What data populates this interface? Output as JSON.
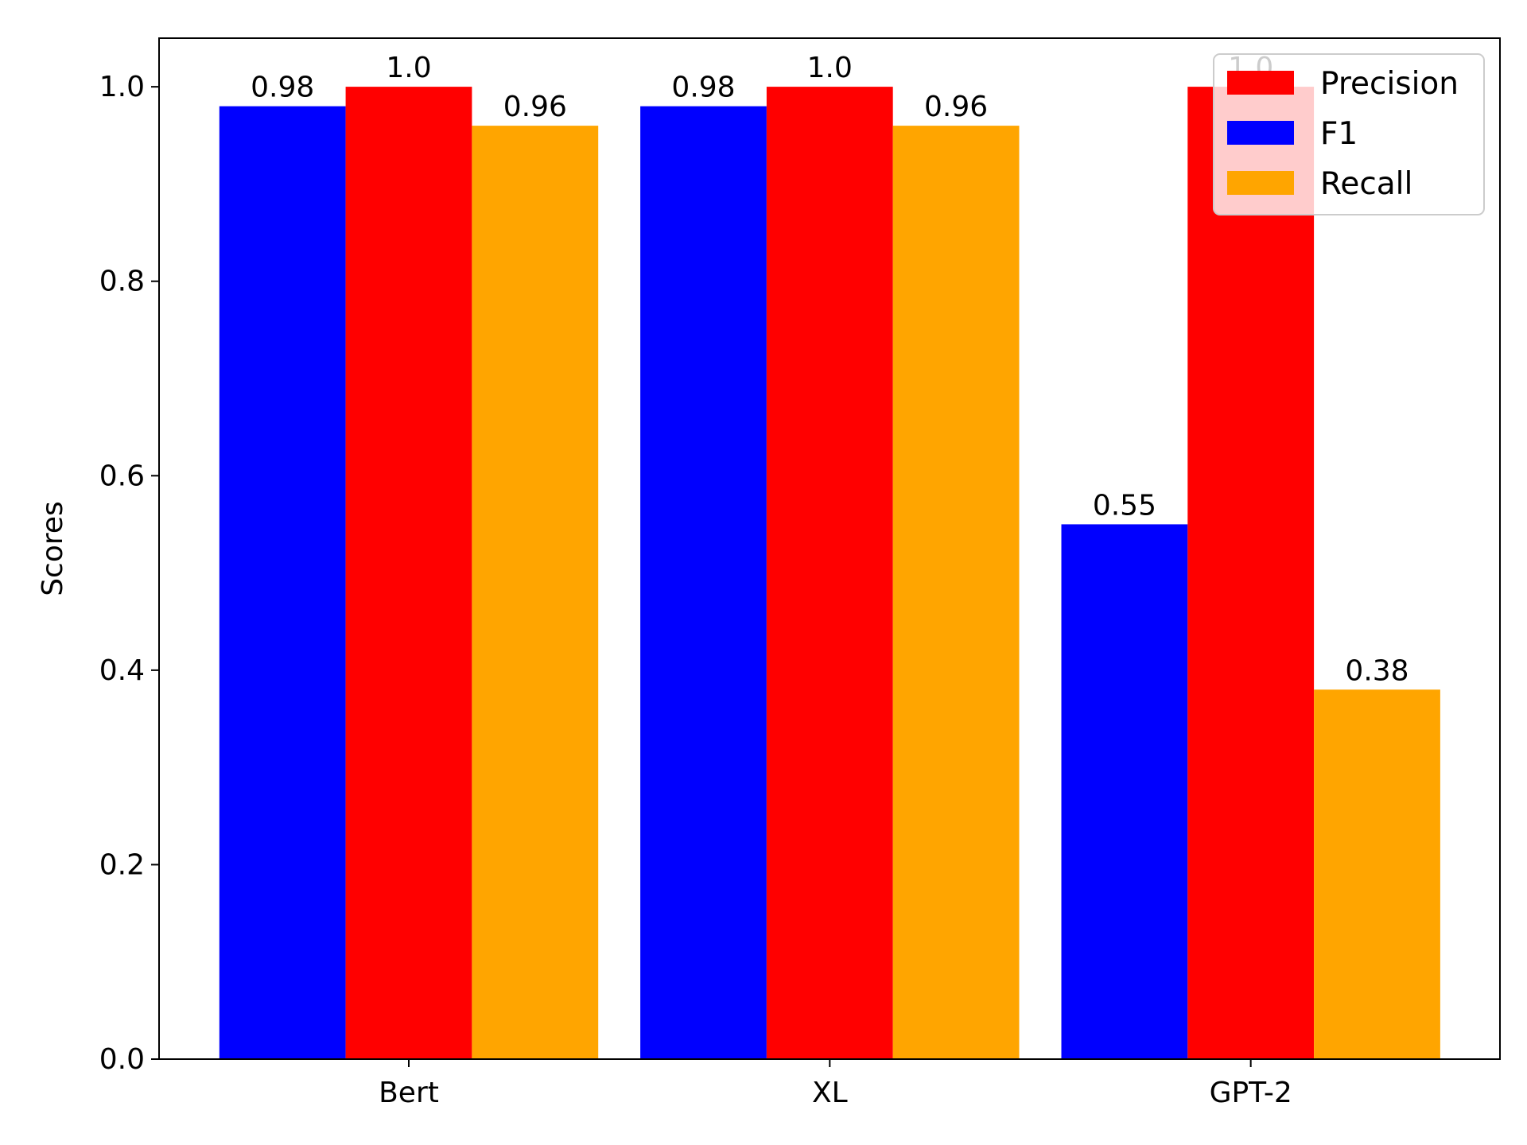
{
  "chart_data": {
    "type": "bar",
    "title": "",
    "xlabel": "",
    "ylabel": "Scores",
    "categories": [
      "Bert",
      "XL",
      "GPT-2"
    ],
    "series": [
      {
        "name": "F1",
        "color": "#0000ff",
        "values": [
          0.98,
          0.98,
          0.55
        ],
        "labels": [
          "0.98",
          "0.98",
          "0.55"
        ]
      },
      {
        "name": "Precision",
        "color": "#ff0000",
        "values": [
          1.0,
          1.0,
          1.0
        ],
        "labels": [
          "1.0",
          "1.0",
          "1.0"
        ]
      },
      {
        "name": "Recall",
        "color": "#ffa500",
        "values": [
          0.96,
          0.96,
          0.38
        ],
        "labels": [
          "0.96",
          "0.96",
          "0.38"
        ]
      }
    ],
    "ylim": [
      0,
      1.05
    ],
    "yticks": [
      {
        "value": 0.0,
        "label": "0.0"
      },
      {
        "value": 0.2,
        "label": "0.2"
      },
      {
        "value": 0.4,
        "label": "0.4"
      },
      {
        "value": 0.6,
        "label": "0.6"
      },
      {
        "value": 0.8,
        "label": "0.8"
      },
      {
        "value": 1.0,
        "label": "1.0"
      }
    ],
    "grid": false,
    "legend": {
      "placement": "top-right",
      "order": [
        "Precision",
        "F1",
        "Recall"
      ]
    }
  }
}
